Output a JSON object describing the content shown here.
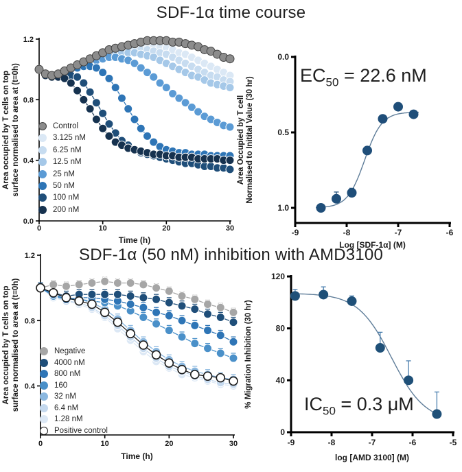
{
  "chart_data": [
    {
      "id": "time_course",
      "type": "line",
      "title": "SDF-1α time course",
      "xlabel": "Time (h)",
      "ylabel_lines": [
        "Area occupied by T cells on top",
        "surface normalised to area at (t=0h)"
      ],
      "xlim": [
        0,
        30
      ],
      "ylim": [
        0,
        1.2
      ],
      "y_reversed": false,
      "xticks": [
        0,
        10,
        20,
        30
      ],
      "xtick_labels": [
        "0",
        "10",
        "20",
        "30"
      ],
      "yticks": [
        0,
        0.4,
        0.8,
        1.2
      ],
      "ytick_labels": [
        "0.0",
        "0.4",
        "0.8",
        "1.2"
      ],
      "x": [
        0,
        1,
        2,
        3,
        4,
        5,
        6,
        7,
        8,
        9,
        10,
        11,
        12,
        13,
        14,
        15,
        16,
        17,
        18,
        19,
        20,
        21,
        22,
        23,
        24,
        25,
        26,
        27,
        28,
        29,
        30
      ],
      "series": [
        {
          "label": "Control",
          "color": "#8c8c8c",
          "stroke": "#404040",
          "line": "#595959",
          "err": 0.022,
          "errdir": "up",
          "errcolor": "#404040",
          "y": [
            1.0,
            0.97,
            0.96,
            0.97,
            0.99,
            1.01,
            1.03,
            1.05,
            1.07,
            1.09,
            1.11,
            1.13,
            1.14,
            1.15,
            1.16,
            1.17,
            1.18,
            1.19,
            1.19,
            1.19,
            1.19,
            1.18,
            1.18,
            1.17,
            1.16,
            1.15,
            1.13,
            1.12,
            1.1,
            1.08,
            1.07
          ]
        },
        {
          "label": "3.125 nM",
          "color": "#dbe8f5",
          "err": 0.02,
          "errdir": "up",
          "y": [
            1.0,
            0.96,
            0.95,
            0.96,
            0.98,
            1.0,
            1.02,
            1.04,
            1.06,
            1.08,
            1.1,
            1.11,
            1.13,
            1.14,
            1.15,
            1.15,
            1.16,
            1.16,
            1.15,
            1.15,
            1.14,
            1.13,
            1.11,
            1.1,
            1.08,
            1.06,
            1.04,
            1.02,
            1.0,
            0.98,
            0.96
          ]
        },
        {
          "label": "6.25 nM",
          "color": "#c7dcf0",
          "err": 0.02,
          "errdir": "up",
          "y": [
            1.0,
            0.96,
            0.95,
            0.96,
            0.98,
            1.0,
            1.02,
            1.04,
            1.05,
            1.07,
            1.09,
            1.1,
            1.12,
            1.12,
            1.13,
            1.13,
            1.13,
            1.13,
            1.12,
            1.11,
            1.1,
            1.08,
            1.06,
            1.04,
            1.02,
            1.0,
            0.98,
            0.96,
            0.95,
            0.93,
            0.92
          ]
        },
        {
          "label": "12.5 nM",
          "color": "#a5c8e8",
          "err": 0.02,
          "errdir": "up",
          "y": [
            1.0,
            0.96,
            0.95,
            0.96,
            0.98,
            1.0,
            1.02,
            1.03,
            1.05,
            1.07,
            1.08,
            1.1,
            1.11,
            1.11,
            1.11,
            1.11,
            1.1,
            1.09,
            1.08,
            1.06,
            1.04,
            1.02,
            1.0,
            0.98,
            0.96,
            0.95,
            0.93,
            0.91,
            0.9,
            0.89,
            0.88
          ]
        },
        {
          "label": "25 nM",
          "color": "#5b9bd5",
          "err": 0.02,
          "errdir": "up",
          "y": [
            1.0,
            0.96,
            0.95,
            0.96,
            0.98,
            1.0,
            1.02,
            1.03,
            1.05,
            1.06,
            1.07,
            1.08,
            1.08,
            1.07,
            1.06,
            1.04,
            1.01,
            0.98,
            0.95,
            0.91,
            0.88,
            0.84,
            0.81,
            0.78,
            0.75,
            0.72,
            0.69,
            0.67,
            0.65,
            0.63,
            0.62
          ]
        },
        {
          "label": "50 nM",
          "color": "#2e75b6",
          "err": 0.02,
          "errdir": "down",
          "y": [
            1.0,
            0.96,
            0.95,
            0.96,
            0.98,
            1.0,
            1.01,
            1.02,
            1.02,
            1.01,
            0.98,
            0.94,
            0.88,
            0.81,
            0.74,
            0.67,
            0.61,
            0.56,
            0.52,
            0.49,
            0.47,
            0.46,
            0.45,
            0.45,
            0.44,
            0.44,
            0.44,
            0.43,
            0.43,
            0.43,
            0.43
          ]
        },
        {
          "label": "100 nM",
          "color": "#1f4e79",
          "err": 0.02,
          "errdir": "down",
          "y": [
            1.0,
            0.96,
            0.95,
            0.96,
            0.96,
            0.96,
            0.95,
            0.91,
            0.85,
            0.78,
            0.71,
            0.64,
            0.58,
            0.53,
            0.5,
            0.47,
            0.45,
            0.44,
            0.43,
            0.42,
            0.41,
            0.4,
            0.39,
            0.38,
            0.38,
            0.37,
            0.36,
            0.36,
            0.35,
            0.35,
            0.34
          ]
        },
        {
          "label": "200 nM",
          "color": "#16324f",
          "err": 0.02,
          "errdir": "down",
          "y": [
            1.0,
            0.96,
            0.95,
            0.95,
            0.94,
            0.91,
            0.86,
            0.8,
            0.74,
            0.67,
            0.61,
            0.56,
            0.52,
            0.5,
            0.48,
            0.47,
            0.46,
            0.45,
            0.44,
            0.44,
            0.43,
            0.43,
            0.42,
            0.42,
            0.42,
            0.41,
            0.41,
            0.41,
            0.41,
            0.4,
            0.4
          ]
        }
      ]
    },
    {
      "id": "ec50",
      "type": "scatter",
      "xlabel": "Log [SDF-1α] (M)",
      "ylabel_lines": [
        "Area Occupied by T cell",
        "Normalised to Initital Value (30 hr)"
      ],
      "xlim": [
        -9,
        -6
      ],
      "ylim": [
        0,
        1.1
      ],
      "y_reversed": true,
      "xticks": [
        -9,
        -8,
        -7,
        -6
      ],
      "xtick_labels": [
        "-9",
        "-8",
        "-7",
        "-6"
      ],
      "yticks": [
        0,
        0.5,
        1.0
      ],
      "ytick_labels": [
        "0.0",
        "0.5",
        "1.0"
      ],
      "x": [
        -8.5,
        -8.2,
        -7.9,
        -7.6,
        -7.3,
        -7.0,
        -6.7
      ],
      "y": [
        1.0,
        0.94,
        0.9,
        0.62,
        0.41,
        0.33,
        0.38
      ],
      "err": [
        0,
        0.045,
        0.03,
        0,
        0,
        0,
        0
      ],
      "marker_color": "#1f4e79",
      "err_color": "#1f4e79",
      "fit": {
        "top": 1.0,
        "bottom": 0.365,
        "logx50": -7.65,
        "hill": 2.6,
        "range": [
          -8.6,
          -6.6
        ],
        "color": "#5f7d99"
      },
      "annotation": {
        "base": "EC",
        "sub": "50",
        "rest": " = 22.6 nM"
      }
    },
    {
      "id": "inhibition",
      "type": "line",
      "title": "SDF-1α (50 nM) inhibition with AMD3100",
      "xlabel": "Time (h)",
      "ylabel_lines": [
        "Area occupied by T cells on top",
        "surface normalised to area at (t=0h)"
      ],
      "xlim": [
        0,
        30
      ],
      "ylim": [
        0.1,
        1.2
      ],
      "y_reversed": false,
      "xticks": [
        0,
        10,
        20,
        30
      ],
      "xtick_labels": [
        "0",
        "10",
        "20",
        "30"
      ],
      "yticks": [
        0.4,
        0.8,
        1.2
      ],
      "ytick_labels": [
        "0.4",
        "0.8",
        "1.2"
      ],
      "x": [
        0,
        2,
        4,
        6,
        8,
        10,
        12,
        14,
        16,
        18,
        20,
        22,
        24,
        26,
        28,
        30
      ],
      "series": [
        {
          "label": "Negative",
          "color": "#a6a6a6",
          "err": 0.025,
          "errdir": "up",
          "y": [
            1.0,
            1.02,
            1.01,
            1.02,
            1.03,
            1.04,
            1.03,
            1.03,
            1.02,
            1.0,
            0.98,
            0.95,
            0.93,
            0.9,
            0.88,
            0.85
          ]
        },
        {
          "label": "4000 nM",
          "color": "#1f4e79",
          "err": 0.03,
          "errdir": "up",
          "y": [
            1.0,
            0.97,
            0.95,
            0.96,
            0.96,
            0.96,
            0.96,
            0.95,
            0.94,
            0.93,
            0.91,
            0.89,
            0.87,
            0.84,
            0.82,
            0.79
          ]
        },
        {
          "label": "800 nM",
          "color": "#2e75b6",
          "err": 0.03,
          "errdir": "up",
          "y": [
            1.0,
            0.96,
            0.93,
            0.94,
            0.94,
            0.93,
            0.92,
            0.9,
            0.88,
            0.85,
            0.83,
            0.8,
            0.77,
            0.74,
            0.71,
            0.67
          ]
        },
        {
          "label": "160",
          "color": "#4a90c9",
          "err": 0.03,
          "errdir": "up",
          "y": [
            1.0,
            0.95,
            0.93,
            0.93,
            0.92,
            0.91,
            0.89,
            0.86,
            0.82,
            0.78,
            0.74,
            0.7,
            0.66,
            0.63,
            0.6,
            0.57
          ]
        },
        {
          "label": "32 nM",
          "color": "#8bb8e0",
          "err": 0.03,
          "errdir": "up",
          "y": [
            1.0,
            0.96,
            0.94,
            0.93,
            0.91,
            0.87,
            0.81,
            0.74,
            0.67,
            0.61,
            0.56,
            0.52,
            0.49,
            0.47,
            0.45,
            0.44
          ]
        },
        {
          "label": "6.4 nM",
          "color": "#c5d9ee",
          "err": 0.025,
          "errdir": "up",
          "y": [
            1.0,
            0.95,
            0.92,
            0.91,
            0.88,
            0.83,
            0.77,
            0.7,
            0.63,
            0.57,
            0.52,
            0.49,
            0.46,
            0.44,
            0.42,
            0.41
          ]
        },
        {
          "label": "1.28 nM",
          "color": "#dce8f5",
          "err": 0.02,
          "errdir": "up",
          "y": [
            1.0,
            0.94,
            0.92,
            0.9,
            0.87,
            0.82,
            0.75,
            0.68,
            0.61,
            0.55,
            0.51,
            0.47,
            0.45,
            0.43,
            0.41,
            0.4
          ]
        },
        {
          "label": "Positive control",
          "color": "#ffffff",
          "open": true,
          "stroke": "#1a1a1a",
          "line": "#1a1a1a",
          "err": 0.015,
          "errdir": "up",
          "errcolor": "#1a1a1a",
          "y": [
            1.0,
            0.97,
            0.94,
            0.92,
            0.9,
            0.85,
            0.79,
            0.72,
            0.65,
            0.59,
            0.54,
            0.5,
            0.47,
            0.46,
            0.45,
            0.43
          ]
        }
      ]
    },
    {
      "id": "ic50",
      "type": "scatter",
      "xlabel": "log [AMD 3100] (M)",
      "ylabel_lines": [
        "% Migration Inhibition (30 hr)"
      ],
      "xlim": [
        -9,
        -5
      ],
      "ylim": [
        0,
        120
      ],
      "y_reversed": false,
      "xticks": [
        -9,
        -8,
        -7,
        -6,
        -5
      ],
      "xtick_labels": [
        "-9",
        "-8",
        "-7",
        "-6",
        "-5"
      ],
      "yticks": [
        0,
        40,
        80,
        120
      ],
      "ytick_labels": [
        "0",
        "40",
        "80",
        "120"
      ],
      "x": [
        -8.9,
        -8.2,
        -7.5,
        -6.8,
        -6.1,
        -5.4
      ],
      "y": [
        105,
        106,
        101,
        65,
        40,
        14
      ],
      "err": [
        5,
        6,
        4,
        12,
        15,
        17
      ],
      "marker_color": "#1f5078",
      "err_color": "#4a7fae",
      "fit": {
        "top": 107,
        "bottom": 8,
        "logx50": -6.52,
        "hill": 1.05,
        "range": [
          -8.95,
          -5.3
        ],
        "color": "#5f7d99"
      },
      "annotation": {
        "base": "IC",
        "sub": "50",
        "rest": " = 0.3 μM"
      }
    }
  ]
}
